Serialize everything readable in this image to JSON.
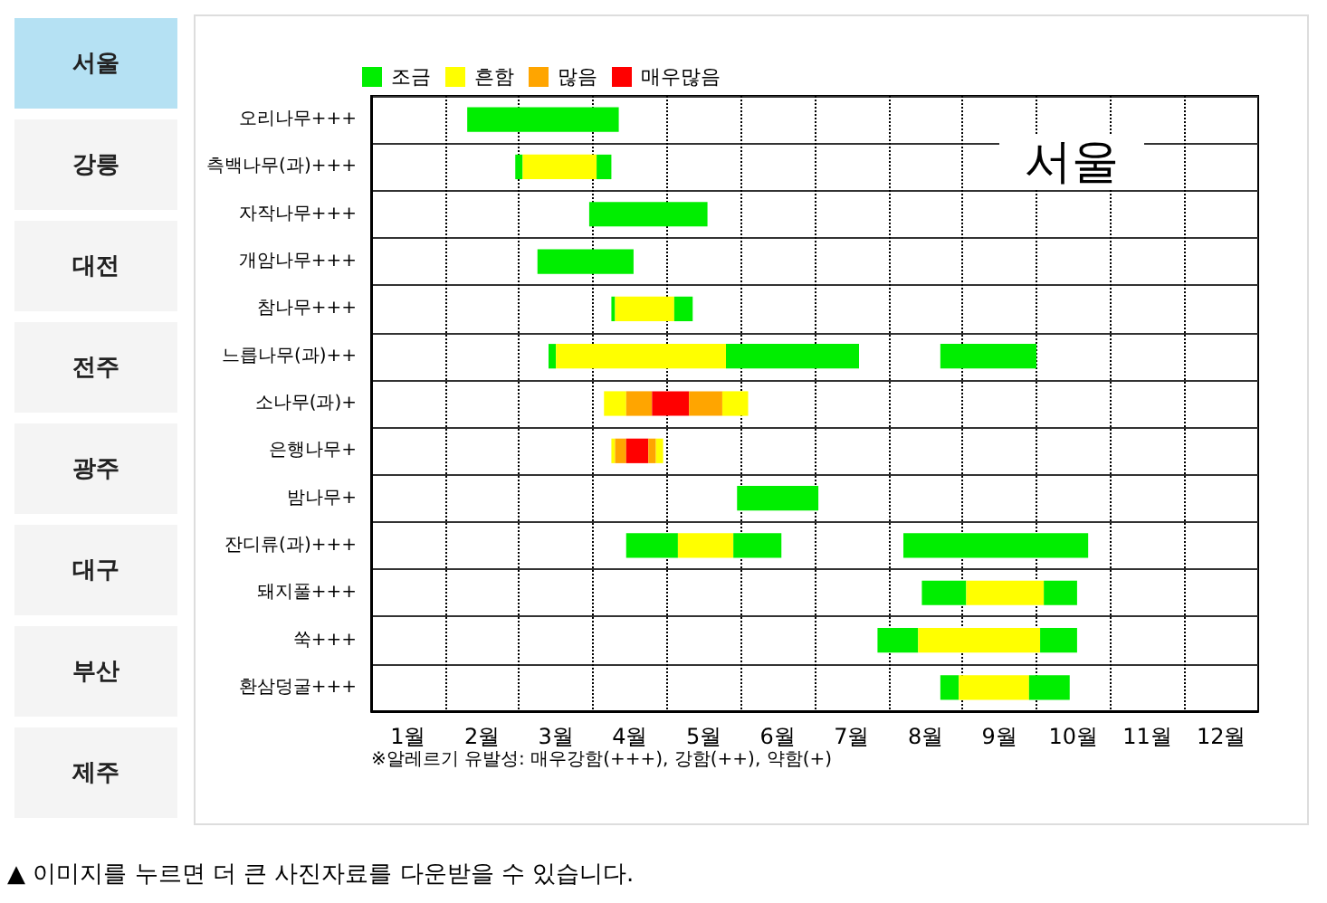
{
  "chart_data": {
    "type": "bar",
    "orientation": "horizontal",
    "title": "서울",
    "categories": [
      "오리나무+++",
      "측백나무(과)+++",
      "자작나무+++",
      "개암나무+++",
      "참나무+++",
      "느릅나무(과)++",
      "소나무(과)+",
      "은행나무+",
      "밤나무+",
      "잔디류(과)+++",
      "돼지풀+++",
      "쑥+++",
      "환삼덩굴+++"
    ],
    "series": [
      {
        "name": "조금",
        "color": "#00ee00",
        "base": [
          1.3,
          1.95,
          2.95,
          2.25,
          3.25,
          2.4,
          null,
          null,
          4.95,
          3.45,
          7.45,
          6.85,
          7.7
        ],
        "values": [
          2.05,
          0.1,
          1.6,
          1.3,
          0.05,
          0.1,
          null,
          null,
          1.1,
          0.7,
          0.6,
          0.55,
          0.25
        ]
      },
      {
        "name": "흔함",
        "color": "#ffff00",
        "base": [
          null,
          2.05,
          null,
          null,
          3.3,
          2.5,
          3.15,
          3.25,
          null,
          4.15,
          8.05,
          7.4,
          7.95
        ],
        "values": [
          null,
          1.0,
          null,
          null,
          0.8,
          2.3,
          0.3,
          0.05,
          null,
          0.75,
          1.05,
          1.65,
          0.95
        ]
      },
      {
        "name": "많음",
        "color": "#ffa500",
        "base": [
          null,
          null,
          null,
          null,
          null,
          null,
          3.45,
          3.3,
          null,
          null,
          null,
          null,
          null
        ],
        "values": [
          null,
          null,
          null,
          null,
          null,
          null,
          0.35,
          0.15,
          null,
          null,
          null,
          null,
          null
        ]
      },
      {
        "name": "매우많음",
        "color": "#ff0000",
        "base": [
          null,
          null,
          null,
          null,
          null,
          null,
          3.8,
          3.45,
          null,
          null,
          null,
          null,
          null
        ],
        "values": [
          null,
          null,
          null,
          null,
          null,
          null,
          0.5,
          0.3,
          null,
          null,
          null,
          null,
          null
        ]
      },
      {
        "color": "#00ee00",
        "base": [
          null,
          3.05,
          null,
          null,
          4.1,
          4.8,
          null,
          null,
          null,
          4.9,
          9.1,
          9.05,
          8.9
        ],
        "values": [
          null,
          0.2,
          null,
          null,
          0.25,
          1.8,
          null,
          null,
          null,
          0.65,
          0.45,
          0.5,
          0.55
        ]
      },
      {
        "color": "#00ee00",
        "base": [
          null,
          null,
          null,
          null,
          null,
          7.7,
          null,
          null,
          null,
          7.2,
          null,
          null,
          null
        ],
        "values": [
          null,
          null,
          null,
          null,
          null,
          1.3,
          null,
          null,
          null,
          2.5,
          null,
          null,
          null
        ]
      },
      {
        "color": "#ffff00",
        "base": [
          null,
          null,
          null,
          null,
          null,
          null,
          4.75,
          3.85,
          null,
          null,
          null,
          null,
          null
        ],
        "values": [
          null,
          null,
          null,
          null,
          null,
          null,
          0.35,
          0.1,
          null,
          null,
          null,
          null,
          null
        ]
      },
      {
        "color": "#ffa500",
        "base": [
          null,
          null,
          null,
          null,
          null,
          null,
          4.3,
          3.75,
          null,
          null,
          null,
          null,
          null
        ],
        "values": [
          null,
          null,
          null,
          null,
          null,
          null,
          0.45,
          0.1,
          null,
          null,
          null,
          null,
          null
        ]
      }
    ],
    "xlim": [
      0,
      12
    ],
    "xticks": [
      {
        "value": 0.5,
        "label": "1월"
      },
      {
        "value": 1,
        "label": null
      },
      {
        "value": 1.5,
        "label": "2월"
      },
      {
        "value": 2,
        "label": null
      },
      {
        "value": 2.5,
        "label": "3월"
      },
      {
        "value": 3,
        "label": null
      },
      {
        "value": 3.5,
        "label": "4월"
      },
      {
        "value": 4,
        "label": null
      },
      {
        "value": 4.5,
        "label": "5월"
      },
      {
        "value": 5,
        "label": null
      },
      {
        "value": 5.5,
        "label": "6월"
      },
      {
        "value": 6,
        "label": null
      },
      {
        "value": 6.5,
        "label": "7월"
      },
      {
        "value": 7,
        "label": null
      },
      {
        "value": 7.5,
        "label": "8월"
      },
      {
        "value": 8,
        "label": null
      },
      {
        "value": 8.5,
        "label": "9월"
      },
      {
        "value": 9,
        "label": null
      },
      {
        "value": 9.5,
        "label": "10월"
      },
      {
        "value": 10,
        "label": null
      },
      {
        "value": 10.5,
        "label": "11월"
      },
      {
        "value": 11,
        "label": null
      },
      {
        "value": 11.5,
        "label": "12월"
      }
    ],
    "grid": true,
    "legend": "top left",
    "annotations": [
      "서울",
      "강릉",
      "대전",
      "전주",
      "광주",
      "대구",
      "부산",
      "제주",
      "※알레르기 유발성: 매우강함(+++), 강함(++), 약함(+)",
      "▲ 이미지를 누르면 더 큰 사진자료를 다운받을 수 있습니다."
    ]
  }
}
